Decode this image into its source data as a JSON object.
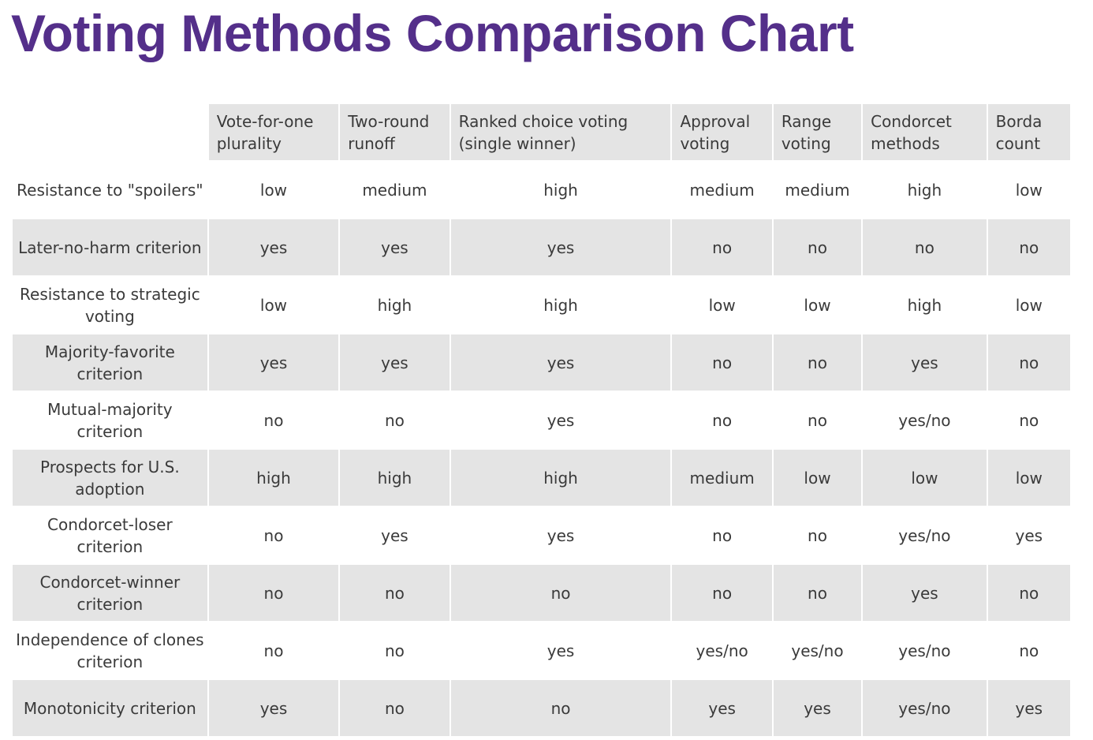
{
  "title": "Voting Methods Comparison Chart",
  "colors": {
    "title": "#542f8a",
    "shade": "#e4e4e4",
    "text": "#3a3a3a"
  },
  "chart_data": {
    "type": "table",
    "title": "Voting Methods Comparison Chart",
    "columns": [
      "Vote-for-one plurality",
      "Two-round runoff",
      "Ranked choice voting (single winner)",
      "Approval voting",
      "Range voting",
      "Condorcet methods",
      "Borda count"
    ],
    "rows": [
      {
        "criterion": "Resistance to \"spoilers\"",
        "values": [
          "low",
          "medium",
          "high",
          "medium",
          "medium",
          "high",
          "low"
        ]
      },
      {
        "criterion": "Later-no-harm criterion",
        "values": [
          "yes",
          "yes",
          "yes",
          "no",
          "no",
          "no",
          "no"
        ]
      },
      {
        "criterion": "Resistance to strategic voting",
        "values": [
          "low",
          "high",
          "high",
          "low",
          "low",
          "high",
          "low"
        ]
      },
      {
        "criterion": "Majority-favorite criterion",
        "values": [
          "yes",
          "yes",
          "yes",
          "no",
          "no",
          "yes",
          "no"
        ]
      },
      {
        "criterion": "Mutual-majority criterion",
        "values": [
          "no",
          "no",
          "yes",
          "no",
          "no",
          "yes/no",
          "no"
        ]
      },
      {
        "criterion": "Prospects for U.S. adoption",
        "values": [
          "high",
          "high",
          "high",
          "medium",
          "low",
          "low",
          "low"
        ]
      },
      {
        "criterion": "Condorcet-loser criterion",
        "values": [
          "no",
          "yes",
          "yes",
          "no",
          "no",
          "yes/no",
          "yes"
        ]
      },
      {
        "criterion": "Condorcet-winner criterion",
        "values": [
          "no",
          "no",
          "no",
          "no",
          "no",
          "yes",
          "no"
        ]
      },
      {
        "criterion": "Independence of clones criterion",
        "values": [
          "no",
          "no",
          "yes",
          "yes/no",
          "yes/no",
          "yes/no",
          "no"
        ]
      },
      {
        "criterion": "Monotonicity criterion",
        "values": [
          "yes",
          "no",
          "no",
          "yes",
          "yes",
          "yes/no",
          "yes"
        ]
      }
    ]
  }
}
